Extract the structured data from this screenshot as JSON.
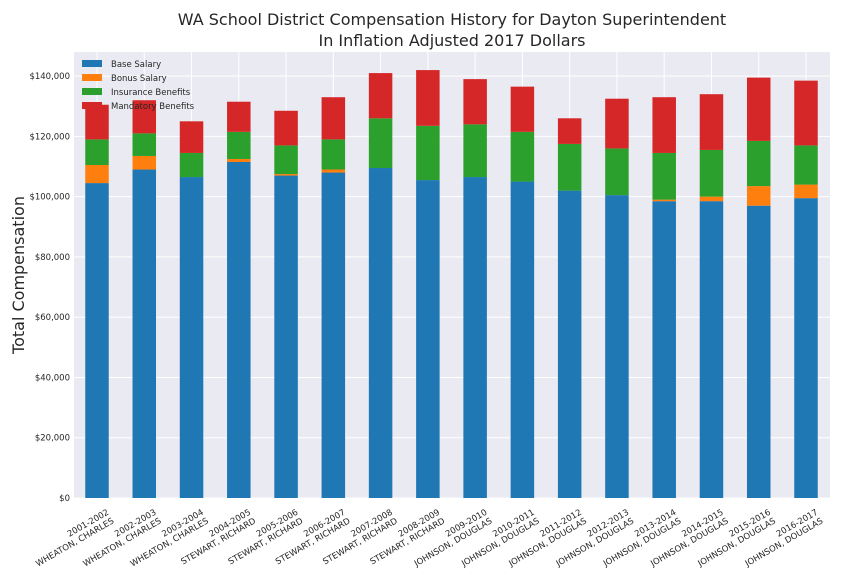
{
  "chart_data": {
    "type": "bar",
    "stacked": true,
    "title": [
      "WA School District Compensation History for Dayton Superintendent",
      "In Inflation Adjusted 2017 Dollars"
    ],
    "xlabel": "",
    "ylabel": "Total Compensation",
    "ylim": [
      0,
      148000
    ],
    "yticks": [
      0,
      20000,
      40000,
      60000,
      80000,
      100000,
      120000,
      140000
    ],
    "ytick_labels": [
      "$0",
      "$20,000",
      "$40,000",
      "$60,000",
      "$80,000",
      "$100,000",
      "$120,000",
      "$140,000"
    ],
    "grid": true,
    "legend_position": "top-left",
    "categories": [
      [
        "2001-2002",
        "WHEATON, CHARLES"
      ],
      [
        "2002-2003",
        "WHEATON, CHARLES"
      ],
      [
        "2003-2004",
        "WHEATON, CHARLES"
      ],
      [
        "2004-2005",
        "STEWART, RICHARD"
      ],
      [
        "2005-2006",
        "STEWART, RICHARD"
      ],
      [
        "2006-2007",
        "STEWART, RICHARD"
      ],
      [
        "2007-2008",
        "STEWART, RICHARD"
      ],
      [
        "2008-2009",
        "STEWART, RICHARD"
      ],
      [
        "2009-2010",
        "JOHNSON, DOUGLAS"
      ],
      [
        "2010-2011",
        "JOHNSON, DOUGLAS"
      ],
      [
        "2011-2012",
        "JOHNSON, DOUGLAS"
      ],
      [
        "2012-2013",
        "JOHNSON, DOUGLAS"
      ],
      [
        "2013-2014",
        "JOHNSON, DOUGLAS"
      ],
      [
        "2014-2015",
        "JOHNSON, DOUGLAS"
      ],
      [
        "2015-2016",
        "JOHNSON, DOUGLAS"
      ],
      [
        "2016-2017",
        "JOHNSON, DOUGLAS"
      ]
    ],
    "series": [
      {
        "name": "Base Salary",
        "color": "#1f77b4",
        "values": [
          104500,
          109000,
          106500,
          111500,
          107000,
          108000,
          109500,
          105500,
          106500,
          105000,
          102000,
          100500,
          98500,
          98500,
          97000,
          99500
        ]
      },
      {
        "name": "Bonus Salary",
        "color": "#ff7f0e",
        "values": [
          6000,
          4500,
          0,
          1000,
          500,
          1000,
          0,
          0,
          0,
          0,
          0,
          0,
          500,
          1500,
          6500,
          4500
        ]
      },
      {
        "name": "Insurance Benefits",
        "color": "#2ca02c",
        "values": [
          8500,
          7500,
          8000,
          9000,
          9500,
          10000,
          16500,
          18000,
          17500,
          16500,
          15500,
          15500,
          15500,
          15500,
          15000,
          13000
        ]
      },
      {
        "name": "Mandatory Benefits",
        "color": "#d62728",
        "values": [
          11500,
          11000,
          10500,
          10000,
          11500,
          14000,
          15000,
          18500,
          15000,
          15000,
          8500,
          16500,
          18500,
          18500,
          21000,
          21500
        ]
      }
    ]
  }
}
